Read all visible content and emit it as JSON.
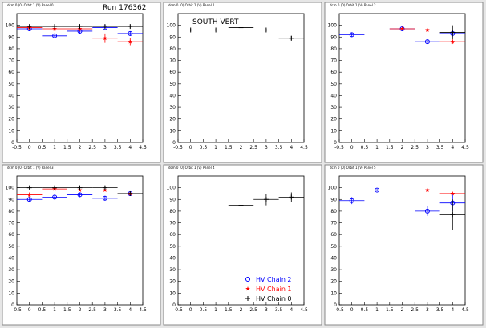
{
  "chart_data": [
    {
      "type": "errorbar",
      "title": "dcm 0 (0) Orbit 1 (V) Panel 0",
      "annotations": [
        "Run 176362"
      ],
      "x": [
        0,
        1,
        2,
        3,
        4
      ],
      "xlim": [
        -0.5,
        4.5
      ],
      "xticks": [
        -0.5,
        0,
        0.5,
        1,
        1.5,
        2,
        2.5,
        3,
        3.5,
        4,
        4.5
      ],
      "ylim": [
        0,
        110
      ],
      "yticks": [
        0,
        10,
        20,
        30,
        40,
        50,
        60,
        70,
        80,
        90,
        100
      ],
      "series": [
        {
          "color": "#0000ff",
          "marker": "circle",
          "values": [
            97,
            91,
            95,
            98,
            93
          ],
          "errors": [
            2,
            2,
            2,
            2,
            2
          ]
        },
        {
          "color": "#ff0000",
          "marker": "star",
          "values": [
            98,
            97,
            97,
            89,
            86
          ],
          "errors": [
            2,
            2,
            2,
            4,
            3
          ]
        },
        {
          "color": "#000000",
          "marker": "plus",
          "values": [
            99,
            99,
            99,
            99,
            99
          ],
          "errors": [
            1,
            1,
            1,
            1,
            1
          ]
        }
      ]
    },
    {
      "type": "errorbar",
      "title": "dcm 0 (0) Orbit 1 (V) Panel 1",
      "annotations": [
        "SOUTH VERT"
      ],
      "x": [
        0,
        1,
        2,
        3,
        4
      ],
      "xlim": [
        -0.5,
        4.5
      ],
      "xticks": [
        -0.5,
        0,
        0.5,
        1,
        1.5,
        2,
        2.5,
        3,
        3.5,
        4,
        4.5
      ],
      "ylim": [
        0,
        110
      ],
      "yticks": [
        0,
        10,
        20,
        30,
        40,
        50,
        60,
        70,
        80,
        90,
        100
      ],
      "series": [
        {
          "color": "#000000",
          "marker": "plus",
          "values": [
            96,
            96,
            98,
            96,
            89
          ],
          "errors": [
            1,
            1,
            1,
            1,
            2
          ]
        }
      ]
    },
    {
      "type": "errorbar",
      "title": "dcm 0 (0) Orbit 1 (V) Panel 2",
      "annotations": [],
      "x": [
        0,
        1,
        2,
        3,
        4
      ],
      "xlim": [
        -0.5,
        4.5
      ],
      "xticks": [
        -0.5,
        0,
        0.5,
        1,
        1.5,
        2,
        2.5,
        3,
        3.5,
        4,
        4.5
      ],
      "ylim": [
        0,
        110
      ],
      "yticks": [
        0,
        10,
        20,
        30,
        40,
        50,
        60,
        70,
        80,
        90,
        100
      ],
      "series": [
        {
          "color": "#0000ff",
          "marker": "circle",
          "values": [
            92,
            null,
            97,
            86,
            93
          ],
          "errors": [
            2,
            null,
            1,
            2,
            3
          ]
        },
        {
          "color": "#ff0000",
          "marker": "star",
          "values": [
            null,
            null,
            97,
            96,
            86
          ],
          "errors": [
            null,
            null,
            1,
            1,
            2
          ]
        },
        {
          "color": "#000000",
          "marker": "plus",
          "values": [
            null,
            null,
            null,
            null,
            94
          ],
          "errors": [
            null,
            null,
            null,
            null,
            6
          ]
        }
      ]
    },
    {
      "type": "errorbar",
      "title": "dcm 0 (0) Orbit 1 (V) Panel 3",
      "annotations": [],
      "x": [
        0,
        1,
        2,
        3,
        4
      ],
      "xlim": [
        -0.5,
        4.5
      ],
      "xticks": [
        -0.5,
        0,
        0.5,
        1,
        1.5,
        2,
        2.5,
        3,
        3.5,
        4,
        4.5
      ],
      "ylim": [
        0,
        110
      ],
      "yticks": [
        0,
        10,
        20,
        30,
        40,
        50,
        60,
        70,
        80,
        90,
        100
      ],
      "series": [
        {
          "color": "#0000ff",
          "marker": "circle",
          "values": [
            90,
            92,
            94,
            91,
            95
          ],
          "errors": [
            2,
            2,
            2,
            2,
            1
          ]
        },
        {
          "color": "#ff0000",
          "marker": "star",
          "values": [
            94,
            99,
            98,
            98,
            95
          ],
          "errors": [
            2,
            1,
            1,
            1,
            1
          ]
        },
        {
          "color": "#000000",
          "marker": "plus",
          "values": [
            100,
            100,
            100,
            100,
            95
          ],
          "errors": [
            1,
            1,
            1,
            1,
            1
          ]
        }
      ]
    },
    {
      "type": "errorbar",
      "title": "dcm 0 (0) Orbit 1 (V) Panel 4",
      "annotations": [],
      "legend": "bottom-right",
      "x": [
        0,
        1,
        2,
        3,
        4
      ],
      "xlim": [
        -0.5,
        4.5
      ],
      "xticks": [
        -0.5,
        0,
        0.5,
        1,
        1.5,
        2,
        2.5,
        3,
        3.5,
        4,
        4.5
      ],
      "ylim": [
        0,
        110
      ],
      "yticks": [
        0,
        10,
        20,
        30,
        40,
        50,
        60,
        70,
        80,
        90,
        100
      ],
      "series": [
        {
          "name": "HV Chain 2",
          "color": "#0000ff",
          "marker": "circle",
          "values": [
            null,
            null,
            null,
            null,
            null
          ],
          "errors": [
            null,
            null,
            null,
            null,
            null
          ]
        },
        {
          "name": "HV Chain 1",
          "color": "#ff0000",
          "marker": "star",
          "values": [
            null,
            null,
            null,
            null,
            null
          ],
          "errors": [
            null,
            null,
            null,
            null,
            null
          ]
        },
        {
          "name": "HV Chain 0",
          "color": "#000000",
          "marker": "plus",
          "values": [
            null,
            null,
            85,
            90,
            92
          ],
          "errors": [
            null,
            null,
            5,
            5,
            4
          ]
        }
      ]
    },
    {
      "type": "errorbar",
      "title": "dcm 0 (0) Orbit 1 (V) Panel 5",
      "annotations": [],
      "x": [
        0,
        1,
        2,
        3,
        4
      ],
      "xlim": [
        -0.5,
        4.5
      ],
      "xticks": [
        -0.5,
        0,
        0.5,
        1,
        1.5,
        2,
        2.5,
        3,
        3.5,
        4,
        4.5
      ],
      "ylim": [
        0,
        110
      ],
      "yticks": [
        0,
        10,
        20,
        30,
        40,
        50,
        60,
        70,
        80,
        90,
        100
      ],
      "series": [
        {
          "color": "#0000ff",
          "marker": "circle",
          "values": [
            89,
            98,
            null,
            80,
            87
          ],
          "errors": [
            3,
            1,
            null,
            4,
            7
          ]
        },
        {
          "color": "#ff0000",
          "marker": "star",
          "values": [
            null,
            null,
            null,
            98,
            95
          ],
          "errors": [
            null,
            null,
            null,
            1,
            1
          ]
        },
        {
          "color": "#000000",
          "marker": "plus",
          "values": [
            null,
            null,
            null,
            null,
            77
          ],
          "errors": [
            null,
            null,
            null,
            null,
            13
          ]
        }
      ]
    }
  ]
}
